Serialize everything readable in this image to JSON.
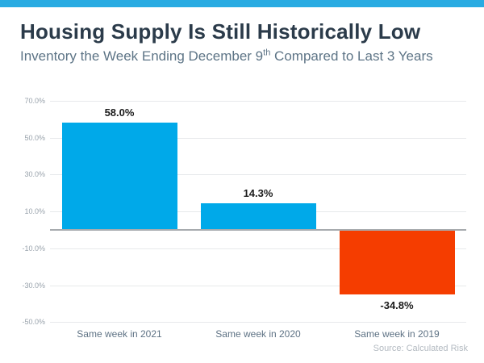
{
  "window": {
    "background_color": "#FFFFFF",
    "accent_bar_color": "#29ABE2"
  },
  "header": {
    "title": "Housing Supply Is Still Historically Low",
    "title_color": "#2B3B4A",
    "subtitle_prefix": "Inventory the Week Ending December 9",
    "subtitle_superscript": "th",
    "subtitle_suffix": " Compared to Last 3 Years",
    "subtitle_color": "#5D7486"
  },
  "chart_data": {
    "type": "bar",
    "categories": [
      "Same week in 2021",
      "Same week in 2020",
      "Same week in 2019"
    ],
    "values": [
      58.0,
      14.3,
      -34.8
    ],
    "value_labels": [
      "58.0%",
      "14.3%",
      "-34.8%"
    ],
    "bar_colors": [
      "#00A9E9",
      "#00A9E9",
      "#F53D00"
    ],
    "positive_color": "#00A9E9",
    "negative_color": "#F53D00",
    "ylim": [
      -50,
      70
    ],
    "yticks": [
      70,
      50,
      30,
      10,
      -10,
      -30,
      -50
    ],
    "ytick_labels": [
      "70.0%",
      "50.0%",
      "30.0%",
      "10.0%",
      "-10.0%",
      "-30.0%",
      "-50.0%"
    ],
    "grid": true,
    "legend": false,
    "title": "Housing Supply Is Still Historically Low",
    "xlabel": "",
    "ylabel": "",
    "value_label_color": "#1B1B1B",
    "category_label_color": "#5E7284",
    "ytick_label_color": "#98A2AB",
    "gridline_color": "#E7E9EB",
    "zero_line_color": "#A7ABAE"
  },
  "footer": {
    "source": "Source: Calculated Risk",
    "source_color": "#B3BAC1"
  }
}
